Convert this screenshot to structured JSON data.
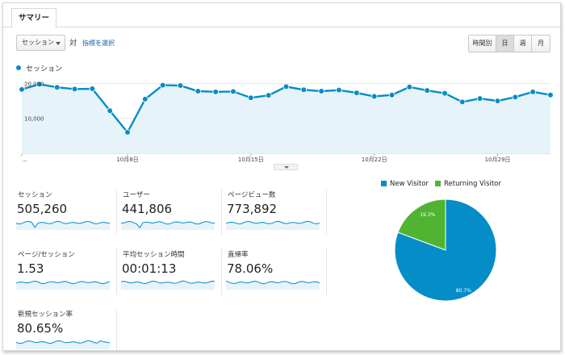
{
  "tab": {
    "summary": "サマリー"
  },
  "toolbar": {
    "metric_select": "セッション",
    "vs_label": "対",
    "select_metric_link": "指標を選択",
    "period_buttons": [
      "時間別",
      "日",
      "週",
      "月"
    ],
    "active_period": "日"
  },
  "chart_data": [
    {
      "type": "line",
      "series": [
        {
          "name": "セッション",
          "values": [
            18300,
            19800,
            18900,
            18400,
            18500,
            12200,
            6000,
            15500,
            19500,
            19400,
            17800,
            17600,
            17700,
            15900,
            16600,
            19100,
            18200,
            17800,
            18100,
            17300,
            16300,
            16700,
            19000,
            18000,
            17200,
            14700,
            15700,
            15000,
            16100,
            17600,
            16700
          ]
        }
      ],
      "x_tick_labels": [
        "...",
        "10月8日",
        "10月15日",
        "10月22日",
        "10月29日"
      ],
      "y_tick_labels": [
        "20,000",
        "10,000"
      ],
      "ylim": [
        0,
        20800
      ],
      "color": "#058dc7"
    },
    {
      "type": "pie",
      "labels": [
        "New Visitor",
        "Returning Visitor"
      ],
      "values": [
        80.7,
        19.3
      ],
      "value_labels": [
        "80.7%",
        "19.3%"
      ],
      "colors": [
        "#058dc7",
        "#50b432"
      ]
    }
  ],
  "metrics": [
    {
      "label": "セッション",
      "value": "505,260"
    },
    {
      "label": "ユーザー",
      "value": "441,806"
    },
    {
      "label": "ページビュー数",
      "value": "773,892"
    },
    {
      "label": "ページ/セッション",
      "value": "1.53"
    },
    {
      "label": "平均セッション時間",
      "value": "00:01:13"
    },
    {
      "label": "直帰率",
      "value": "78.06%"
    },
    {
      "label": "新規セッション率",
      "value": "80.65%"
    }
  ]
}
